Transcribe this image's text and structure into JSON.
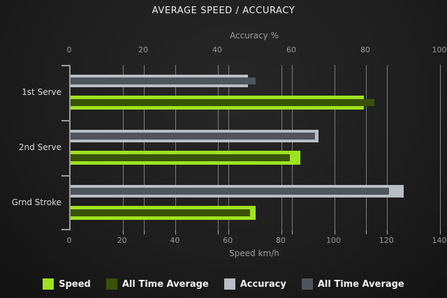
{
  "title": "AVERAGE SPEED / ACCURACY",
  "chart_data": {
    "type": "bar",
    "orientation": "horizontal",
    "title": "AVERAGE SPEED / ACCURACY",
    "categories": [
      "1st Serve",
      "2nd Serve",
      "Grnd Stroke"
    ],
    "series": [
      {
        "name": "Speed",
        "scale": "speed",
        "role": "outer",
        "color": "#9fe31f",
        "values": [
          111,
          87,
          70
        ]
      },
      {
        "name": "All Time Average",
        "scale": "speed",
        "role": "inner",
        "color": "#3a5206",
        "values": [
          115,
          83,
          68
        ]
      },
      {
        "name": "Accuracy",
        "scale": "accuracy",
        "role": "outer",
        "color": "#b9bfc4",
        "values": [
          48,
          67,
          90
        ]
      },
      {
        "name": "All Time Average",
        "scale": "accuracy",
        "role": "inner",
        "color": "#4e555d",
        "values": [
          50,
          66,
          86
        ]
      }
    ],
    "scales": {
      "accuracy": {
        "label": "Accuracy %",
        "min": 0,
        "max": 100,
        "ticks": [
          0,
          20,
          40,
          60,
          80,
          100
        ],
        "position": "top"
      },
      "speed": {
        "label": "Speed km/h",
        "min": 0,
        "max": 140,
        "ticks": [
          0,
          20,
          40,
          60,
          80,
          100,
          120,
          140
        ],
        "position": "bottom"
      }
    },
    "grid": true,
    "legend_position": "bottom",
    "colors": {
      "background": "#1e1e1e",
      "gridline": "#8f8f8f",
      "axis": "#9e9e9e",
      "tick_text": "#9c9c9c",
      "category_text": "#dcdcdc",
      "title_text": "#efefef",
      "legend_text": "#f0f0f0"
    }
  }
}
